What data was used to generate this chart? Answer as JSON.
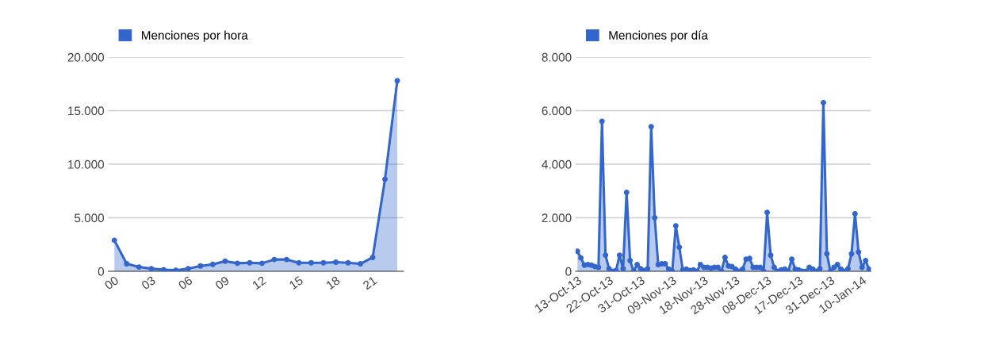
{
  "chart_data": [
    {
      "type": "area",
      "categories": [
        "00",
        null,
        null,
        "03",
        null,
        null,
        "06",
        null,
        null,
        "09",
        null,
        null,
        "12",
        null,
        null,
        "15",
        null,
        null,
        "18",
        null,
        null,
        "21",
        null,
        null
      ],
      "series": [
        {
          "name": "Menciones por hora",
          "color": "#3366cc",
          "values": [
            2900,
            700,
            400,
            250,
            150,
            100,
            250,
            500,
            650,
            950,
            750,
            800,
            750,
            1100,
            1100,
            800,
            800,
            800,
            850,
            800,
            700,
            1300,
            8600,
            17800
          ]
        }
      ],
      "ylim": [
        0,
        20000
      ],
      "yticks": [
        0,
        {
          "value": 5000,
          "label": "5.000"
        },
        {
          "value": 10000,
          "label": "10.000"
        },
        {
          "value": 15000,
          "label": "15.000"
        },
        {
          "value": 20000,
          "label": "20.000"
        }
      ],
      "grid": "y",
      "legend": "top left",
      "marker": "circle"
    },
    {
      "type": "area",
      "categories": [
        "13-Oct-13",
        null,
        null,
        null,
        null,
        null,
        null,
        null,
        null,
        "22-Oct-13",
        null,
        null,
        null,
        null,
        null,
        null,
        null,
        null,
        "31-Oct-13",
        null,
        null,
        null,
        null,
        null,
        null,
        null,
        null,
        "09-Nov-13",
        null,
        null,
        null,
        null,
        null,
        null,
        null,
        null,
        "18-Nov-13",
        null,
        null,
        null,
        null,
        null,
        null,
        null,
        null,
        "28-Nov-13",
        null,
        null,
        null,
        null,
        null,
        null,
        null,
        null,
        "08-Dec-13",
        null,
        null,
        null,
        null,
        null,
        null,
        null,
        null,
        "17-Dec-13",
        null,
        null,
        null,
        null,
        null,
        null,
        null,
        null,
        "31-Dec-13",
        null,
        null,
        null,
        null,
        null,
        null,
        null,
        null,
        "10-Jan-14",
        null,
        null
      ],
      "series": [
        {
          "name": "Menciones por día",
          "color": "#3366cc",
          "values": [
            750,
            500,
            230,
            250,
            230,
            180,
            150,
            5600,
            600,
            100,
            0,
            30,
            600,
            100,
            2950,
            400,
            0,
            250,
            100,
            30,
            100,
            5400,
            2000,
            250,
            280,
            280,
            80,
            0,
            1700,
            900,
            50,
            80,
            30,
            50,
            0,
            250,
            150,
            150,
            120,
            150,
            150,
            0,
            520,
            200,
            180,
            80,
            0,
            80,
            450,
            480,
            150,
            150,
            150,
            0,
            2200,
            600,
            150,
            0,
            50,
            80,
            0,
            450,
            80,
            50,
            0,
            0,
            150,
            80,
            0,
            100,
            6300,
            650,
            0,
            150,
            250,
            80,
            0,
            100,
            650,
            2150,
            720,
            150,
            400,
            80
          ]
        }
      ],
      "ylim": [
        0,
        8000
      ],
      "yticks": [
        0,
        {
          "value": 2000,
          "label": "2.000"
        },
        {
          "value": 4000,
          "label": "4.000"
        },
        {
          "value": 6000,
          "label": "6.000"
        },
        {
          "value": 8000,
          "label": "8.000"
        }
      ],
      "grid": "y",
      "legend": "top left",
      "marker": "circle"
    }
  ]
}
